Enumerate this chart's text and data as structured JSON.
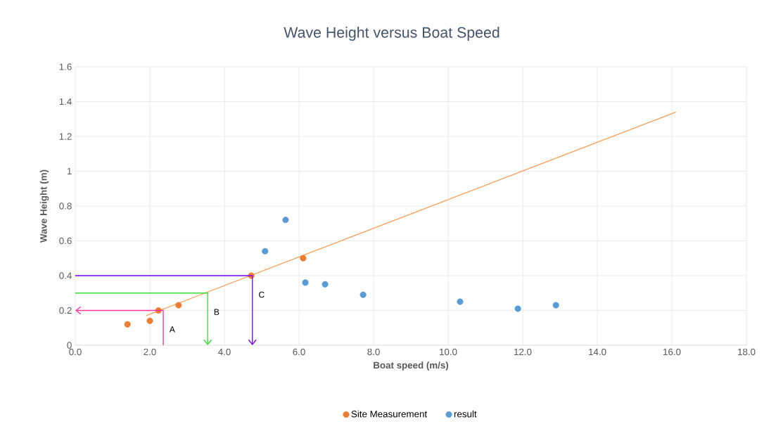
{
  "chart_data": {
    "type": "scatter",
    "title": "Wave Height versus Boat Speed",
    "xlabel": "Boat speed (m/s)",
    "ylabel": "Wave Height (m)",
    "xlim": [
      0,
      18
    ],
    "ylim": [
      0,
      1.6
    ],
    "xticks": [
      {
        "value": 0,
        "label": "0.0"
      },
      {
        "value": 2,
        "label": "2.0"
      },
      {
        "value": 4,
        "label": "4.0"
      },
      {
        "value": 6,
        "label": "6.0"
      },
      {
        "value": 8,
        "label": "8.0"
      },
      {
        "value": 10,
        "label": "10.0"
      },
      {
        "value": 12,
        "label": "12.0"
      },
      {
        "value": 14,
        "label": "14.0"
      },
      {
        "value": 16,
        "label": "16.0"
      },
      {
        "value": 18,
        "label": "18.0"
      }
    ],
    "yticks": [
      0,
      0.2,
      0.4,
      0.6,
      0.8,
      1,
      1.2,
      1.4,
      1.6
    ],
    "grid": true,
    "legend": "bottom",
    "marker": "circle",
    "series": [
      {
        "name": "Site Measurement",
        "color": "#ed7d31",
        "x": [
          1.4,
          2.0,
          2.23,
          2.77,
          4.72,
          6.11
        ],
        "values": [
          0.12,
          0.14,
          0.2,
          0.23,
          0.4,
          0.5
        ]
      },
      {
        "name": "result",
        "color": "#5b9bd5",
        "x": [
          5.09,
          5.64,
          6.17,
          6.7,
          7.72,
          10.32,
          11.87,
          12.89
        ],
        "values": [
          0.54,
          0.72,
          0.36,
          0.35,
          0.29,
          0.25,
          0.21,
          0.23
        ]
      },
      {
        "color": "#f4a15d",
        "type": "line",
        "marker": "none",
        "x": [
          1.9,
          16.11
        ],
        "values": [
          0.17,
          1.34
        ]
      }
    ],
    "annotations": [
      {
        "text": "A",
        "x": 2.36,
        "y": 0.2
      },
      {
        "text": "B",
        "x": 3.55,
        "y": 0.3
      },
      {
        "text": "C",
        "x": 4.75,
        "y": 0.4
      }
    ]
  }
}
